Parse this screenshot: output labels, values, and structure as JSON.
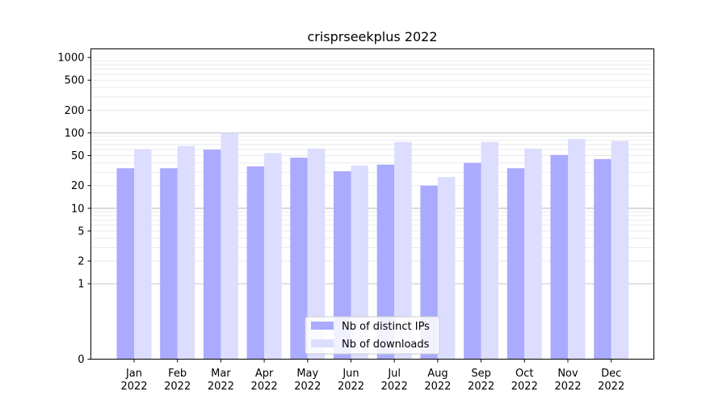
{
  "chart_data": {
    "type": "bar",
    "title": "crisprseekplus 2022",
    "xlabel": "",
    "ylabel": "",
    "y_scale": "symlog",
    "ylim": [
      0,
      1300
    ],
    "y_ticks": [
      0,
      1,
      2,
      5,
      10,
      20,
      50,
      100,
      200,
      500,
      1000
    ],
    "y_tick_labels": [
      "0",
      "1",
      "2",
      "5",
      "10",
      "20",
      "50",
      "100",
      "200",
      "500",
      "1000"
    ],
    "grid": "horizontal",
    "legend_position": "bottom-center",
    "categories": [
      {
        "month": "Jan",
        "year": "2022"
      },
      {
        "month": "Feb",
        "year": "2022"
      },
      {
        "month": "Mar",
        "year": "2022"
      },
      {
        "month": "Apr",
        "year": "2022"
      },
      {
        "month": "May",
        "year": "2022"
      },
      {
        "month": "Jun",
        "year": "2022"
      },
      {
        "month": "Jul",
        "year": "2022"
      },
      {
        "month": "Aug",
        "year": "2022"
      },
      {
        "month": "Sep",
        "year": "2022"
      },
      {
        "month": "Oct",
        "year": "2022"
      },
      {
        "month": "Nov",
        "year": "2022"
      },
      {
        "month": "Dec",
        "year": "2022"
      }
    ],
    "series": [
      {
        "name": "Nb of distinct IPs",
        "color": "#aaaaff",
        "values": [
          34,
          34,
          60,
          36,
          47,
          31,
          38,
          20,
          40,
          34,
          51,
          45
        ]
      },
      {
        "name": "Nb of downloads",
        "color": "#ddddff",
        "values": [
          61,
          67,
          100,
          54,
          62,
          37,
          76,
          26,
          76,
          62,
          83,
          78
        ]
      }
    ]
  }
}
